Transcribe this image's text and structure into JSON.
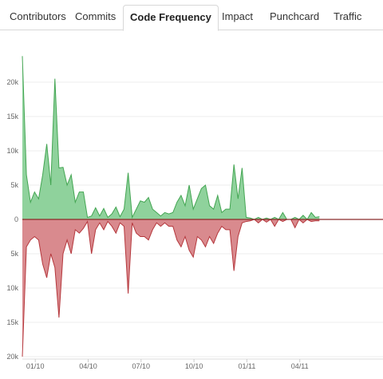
{
  "tabs": [
    {
      "id": "contributors",
      "label": "Contributors",
      "selected": false
    },
    {
      "id": "commits",
      "label": "Commits",
      "selected": false
    },
    {
      "id": "code-frequency",
      "label": "Code Frequency",
      "selected": true
    },
    {
      "id": "impact",
      "label": "Impact",
      "selected": false
    },
    {
      "id": "punchcard",
      "label": "Punchcard",
      "selected": false
    },
    {
      "id": "traffic",
      "label": "Traffic",
      "selected": false
    }
  ],
  "chart_data": {
    "type": "area",
    "title": "",
    "xlabel": "",
    "ylabel": "",
    "grid": true,
    "colors": {
      "additions_fill": "#8fd29c",
      "additions_line": "#43a552",
      "deletions_fill": "#d98a8e",
      "deletions_line": "#b5373c",
      "grid": "#eeeeee",
      "zero_line": "#8a2a2a"
    },
    "ylim": [
      -20000,
      24000
    ],
    "y_ticks": [
      {
        "value": 20000,
        "label": "20k"
      },
      {
        "value": 15000,
        "label": "15k"
      },
      {
        "value": 10000,
        "label": "10k"
      },
      {
        "value": 5000,
        "label": "5k"
      },
      {
        "value": 0,
        "label": "0"
      },
      {
        "value": -5000,
        "label": "5k"
      },
      {
        "value": -10000,
        "label": "10k"
      },
      {
        "value": -15000,
        "label": "15k"
      },
      {
        "value": -20000,
        "label": "20k"
      }
    ],
    "x_ticks": [
      {
        "week": 2,
        "label": "01/10"
      },
      {
        "week": 15,
        "label": "04/10"
      },
      {
        "week": 28,
        "label": "07/10"
      },
      {
        "week": 41,
        "label": "10/10"
      },
      {
        "week": 54,
        "label": "01/11"
      },
      {
        "week": 67,
        "label": "04/11"
      }
    ],
    "weeks": [
      0,
      1,
      2,
      3,
      4,
      5,
      6,
      7,
      8,
      9,
      10,
      11,
      12,
      13,
      14,
      15,
      16,
      17,
      18,
      19,
      20,
      21,
      22,
      23,
      24,
      25,
      26,
      27,
      28,
      29,
      30,
      31,
      32,
      33,
      34,
      35,
      36,
      37,
      38,
      39,
      40,
      41,
      42,
      43,
      44,
      45,
      46,
      47,
      48,
      49,
      50,
      51,
      52,
      53,
      54,
      55,
      56,
      57,
      58,
      59,
      60,
      61,
      62,
      63,
      64,
      65,
      66,
      67,
      68,
      69,
      70,
      71,
      72,
      73
    ],
    "series": [
      {
        "name": "",
        "values": [
          23800,
          6500,
          2500,
          4000,
          3000,
          6500,
          11000,
          5000,
          20500,
          7500,
          7600,
          5000,
          6500,
          2500,
          4000,
          4000,
          300,
          500,
          1700,
          500,
          1600,
          300,
          800,
          1800,
          400,
          1500,
          6800,
          300,
          1500,
          2700,
          2500,
          3200,
          1500,
          1000,
          500,
          1000,
          800,
          1000,
          2500,
          3500,
          2000,
          5000,
          1500,
          3000,
          4500,
          5000,
          2000,
          1500,
          3500,
          1000,
          1500,
          1500,
          8000,
          3000,
          7500,
          300,
          200,
          0,
          300,
          0,
          200,
          0,
          300,
          0,
          1000,
          0,
          0,
          300,
          0,
          600,
          0,
          1000,
          300,
          400
        ]
      },
      {
        "name": "",
        "values": [
          -20000,
          -4000,
          -3000,
          -2500,
          -3000,
          -6500,
          -8500,
          -5000,
          -7000,
          -14300,
          -5000,
          -3000,
          -5000,
          -1500,
          -2000,
          -1300,
          -300,
          -5000,
          -1500,
          -500,
          -1500,
          -300,
          -1000,
          -2000,
          -500,
          -1000,
          -10800,
          -500,
          -2000,
          -2500,
          -2500,
          -3000,
          -1500,
          -500,
          -1000,
          -500,
          -1000,
          -1000,
          -3000,
          -4000,
          -2500,
          -4500,
          -5500,
          -2500,
          -3000,
          -4000,
          -2500,
          -3500,
          -2000,
          -1000,
          -1500,
          -1500,
          -7500,
          -2500,
          -500,
          -300,
          -200,
          0,
          -500,
          0,
          -400,
          0,
          -1000,
          0,
          -300,
          0,
          0,
          -1200,
          0,
          -500,
          0,
          -300,
          -200,
          -200
        ]
      }
    ]
  }
}
